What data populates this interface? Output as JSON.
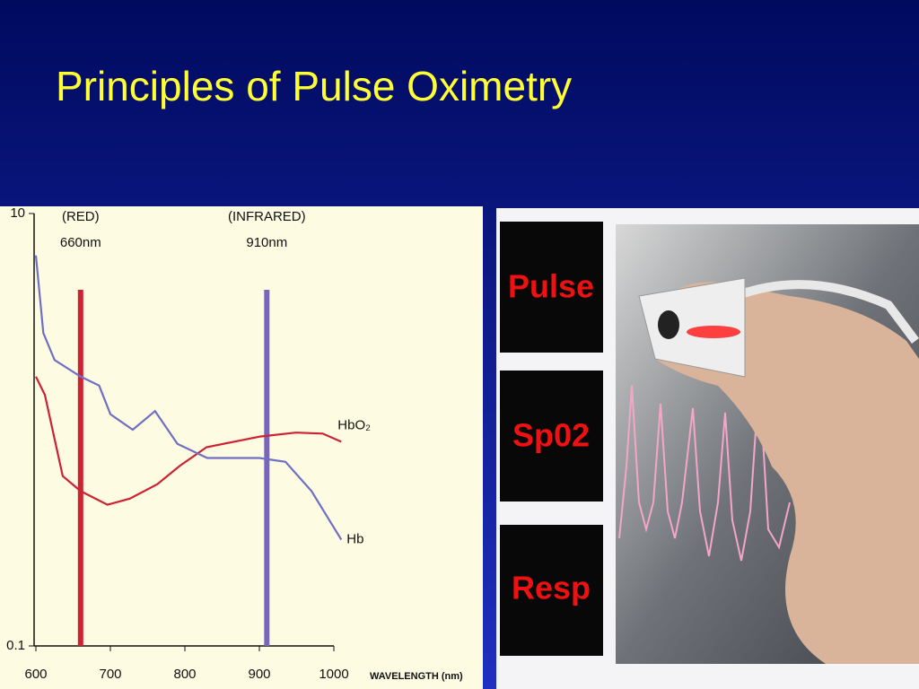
{
  "title": "Principles of Pulse Oximetry",
  "chart_data": {
    "type": "line",
    "log_y": true,
    "xlabel": "WAVELENGTH (nm)",
    "xlim": [
      600,
      1020
    ],
    "xticks": [
      600,
      700,
      800,
      900,
      1000
    ],
    "ylim": [
      0.1,
      10
    ],
    "yticks": [
      0.1,
      10
    ],
    "markers": [
      {
        "label": "(RED)",
        "sublabel": "660nm",
        "x": 660,
        "color": "#cc2233"
      },
      {
        "label": "(INFRARED)",
        "sublabel": "910nm",
        "x": 910,
        "color": "#7766bb"
      }
    ],
    "series": [
      {
        "name": "HbO₂",
        "color": "#cc2233",
        "x": [
          600,
          612,
          636,
          660,
          696,
          726,
          763,
          793,
          829,
          901,
          949,
          985,
          1010
        ],
        "values": [
          1.76,
          1.45,
          0.61,
          0.52,
          0.45,
          0.48,
          0.56,
          0.68,
          0.83,
          0.93,
          0.97,
          0.96,
          0.88
        ]
      },
      {
        "name": "Hb",
        "color": "#6f6fc4",
        "x": [
          600,
          610,
          625,
          660,
          685,
          700,
          730,
          760,
          790,
          830,
          900,
          935,
          970,
          1010
        ],
        "values": [
          6.4,
          2.8,
          2.1,
          1.76,
          1.6,
          1.18,
          1.0,
          1.22,
          0.86,
          0.74,
          0.74,
          0.71,
          0.52,
          0.31
        ]
      }
    ]
  },
  "monitor": {
    "labels": [
      "Pulse",
      "Sp02",
      "Resp"
    ]
  }
}
